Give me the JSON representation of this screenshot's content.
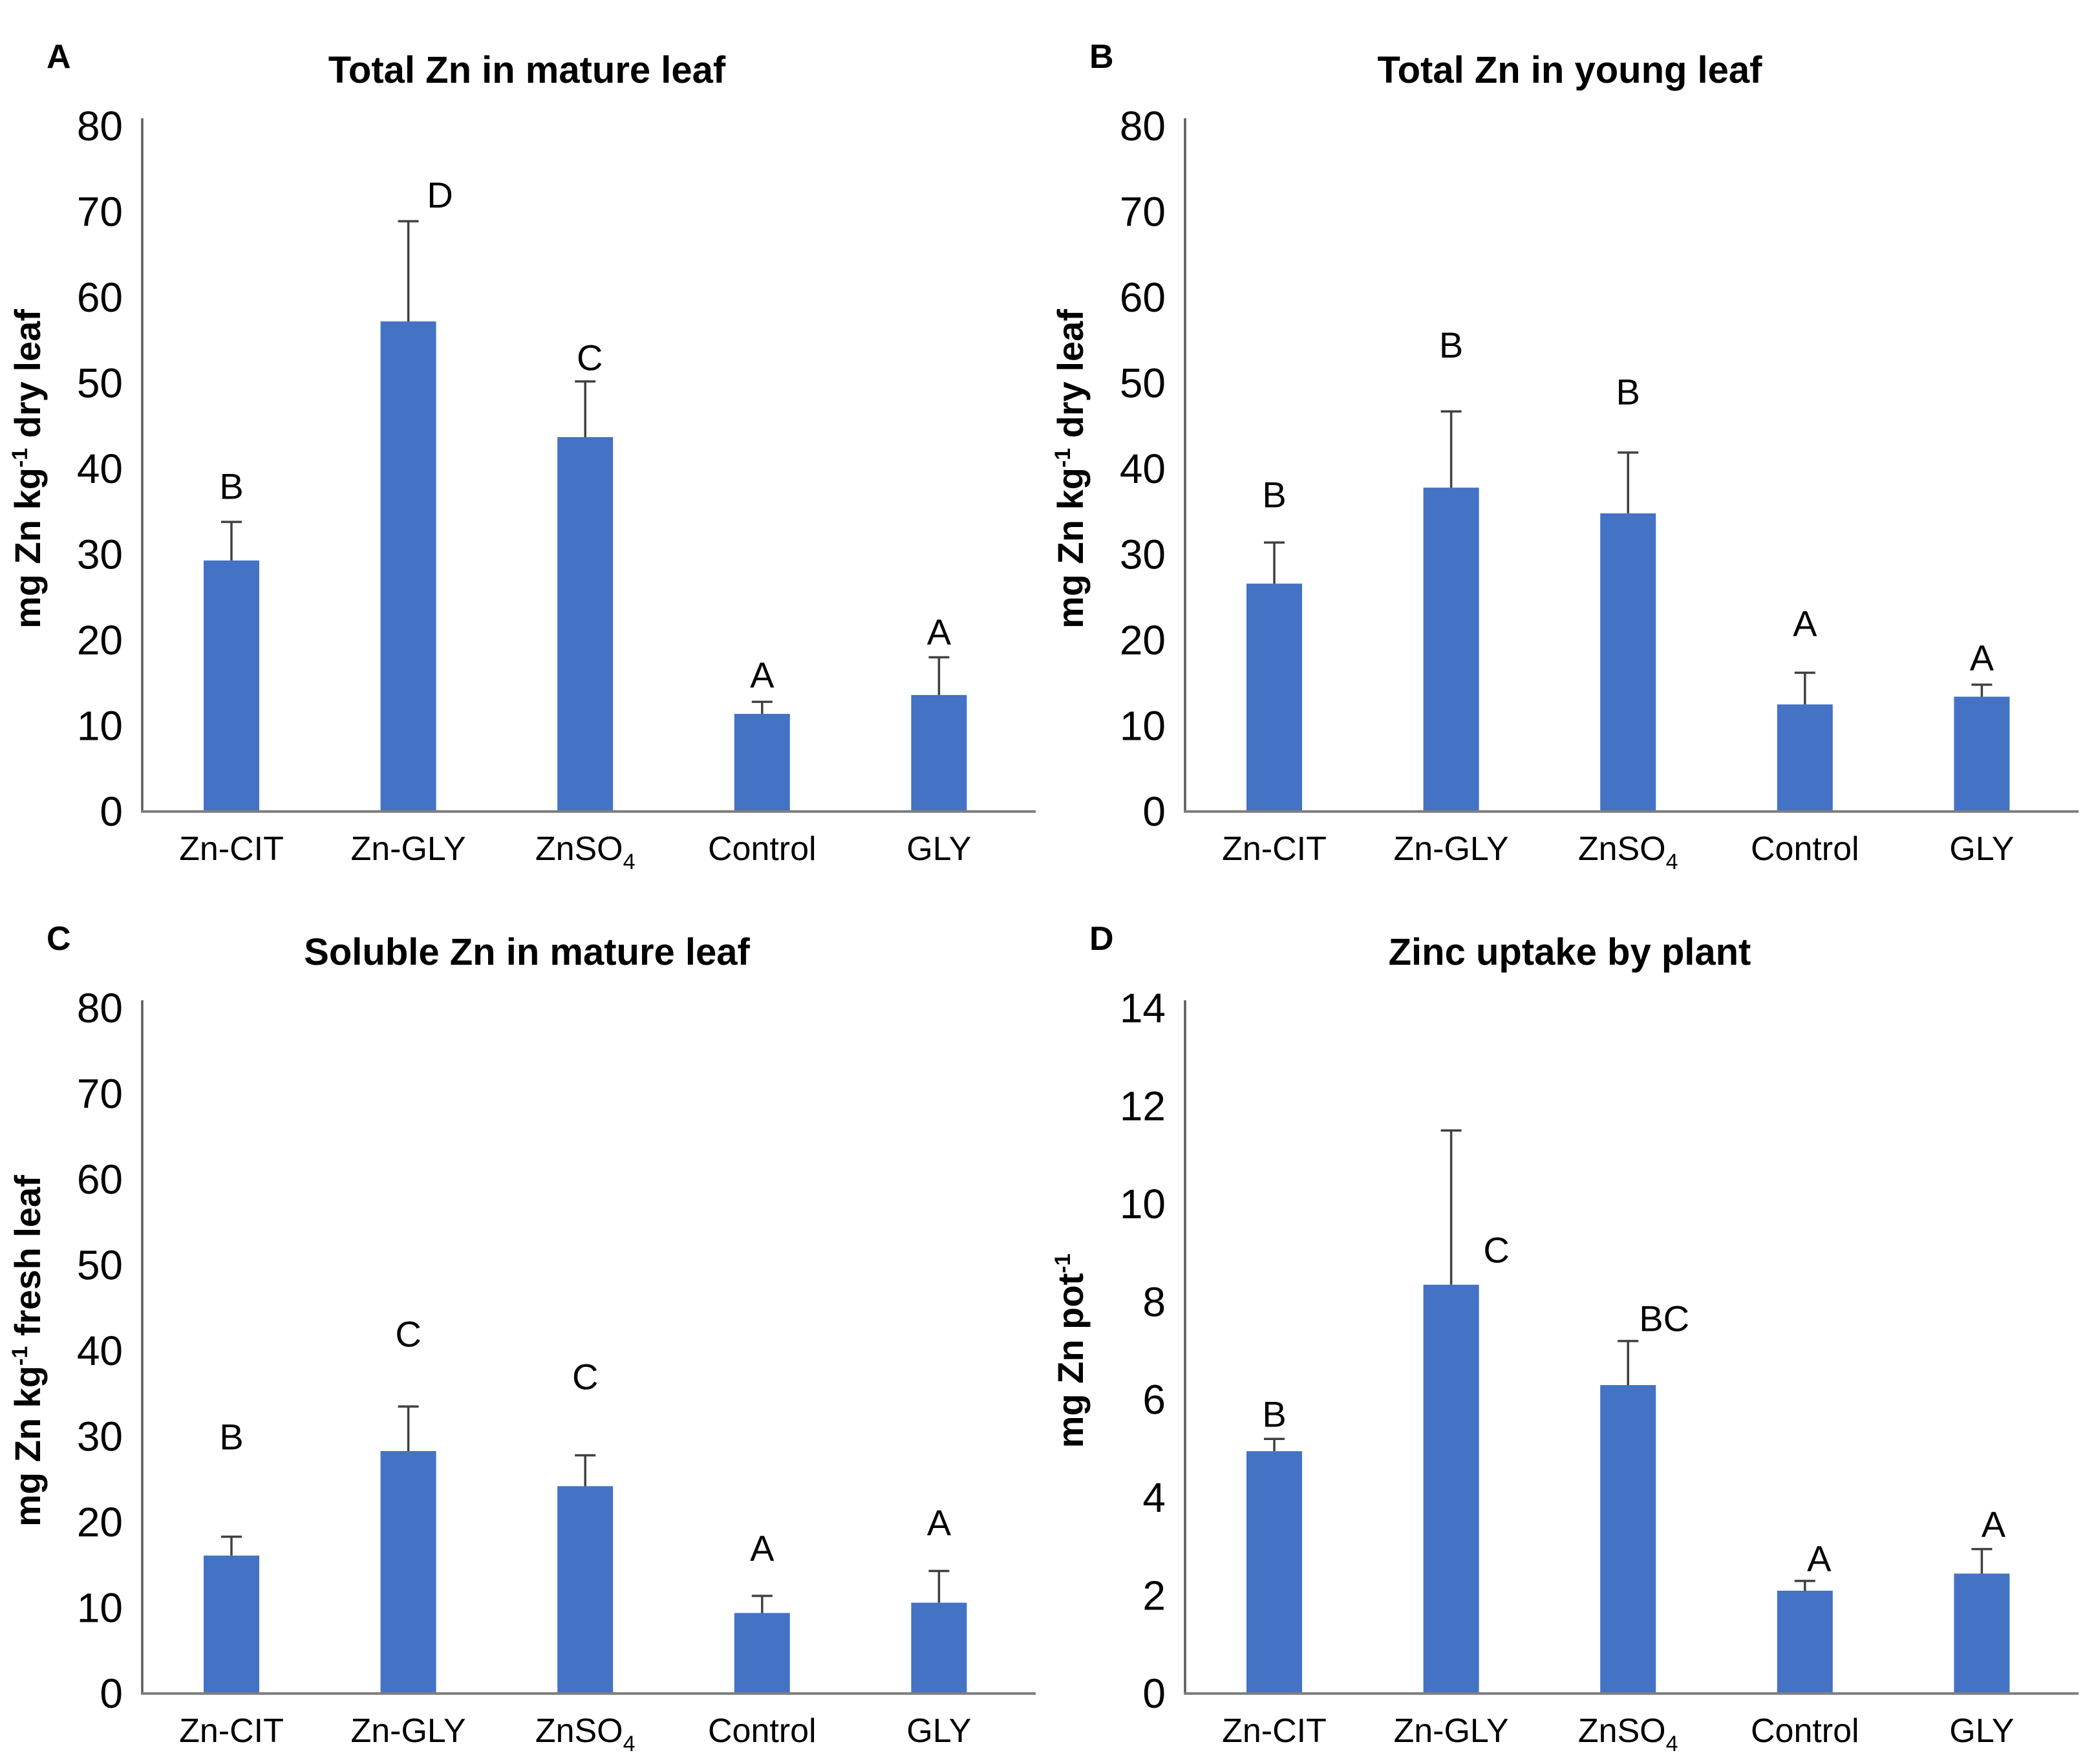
{
  "figure": {
    "bar_color": "#4472C4",
    "error_bar_color": "#404040",
    "y_axis_color": "#595959",
    "baseline_color": "#7F7F7F",
    "text_color": "#000000",
    "background": "#FFFFFF"
  },
  "chart_data": [
    {
      "type": "bar",
      "panel_label": "A",
      "title": "Total Zn in mature leaf",
      "ylabel": {
        "pre": "mg Zn  kg",
        "sup": "-1",
        "post": " dry leaf"
      },
      "ylim": [
        0,
        80
      ],
      "ytick_step": 10,
      "grid": false,
      "legend": "none",
      "categories": [
        "Zn-CIT",
        "Zn-GLY",
        {
          "text": "ZnSO",
          "sub": "4"
        },
        "Control",
        "GLY"
      ],
      "values": [
        29.3,
        57.2,
        43.7,
        11.4,
        13.6
      ],
      "errors_plus": [
        4.5,
        11.7,
        6.5,
        1.4,
        4.4
      ],
      "letters": [
        {
          "text": "B",
          "y": 36.5,
          "dx": 0
        },
        {
          "text": "D",
          "y": 70.5,
          "dx": 49
        },
        {
          "text": "C",
          "y": 51.5,
          "dx": 7
        },
        {
          "text": "A",
          "y": 14.5,
          "dx": 0
        },
        {
          "text": "A",
          "y": 19.5,
          "dx": 0
        }
      ]
    },
    {
      "type": "bar",
      "panel_label": "B",
      "title": "Total Zn in young leaf",
      "ylabel": {
        "pre": "mg Zn kg",
        "sup": "-1",
        "post": " dry leaf"
      },
      "ylim": [
        0,
        80
      ],
      "ytick_step": 10,
      "grid": false,
      "legend": "none",
      "categories": [
        "Zn-CIT",
        "Zn-GLY",
        {
          "text": "ZnSO",
          "sub": "4"
        },
        "Control",
        "GLY"
      ],
      "values": [
        26.6,
        37.8,
        34.8,
        12.5,
        13.4
      ],
      "errors_plus": [
        4.8,
        8.9,
        7.1,
        3.7,
        1.4
      ],
      "letters": [
        {
          "text": "B",
          "y": 35.5,
          "dx": 0
        },
        {
          "text": "B",
          "y": 53.0,
          "dx": 0
        },
        {
          "text": "B",
          "y": 47.5,
          "dx": 0
        },
        {
          "text": "A",
          "y": 20.5,
          "dx": 0
        },
        {
          "text": "A",
          "y": 16.5,
          "dx": 0
        }
      ]
    },
    {
      "type": "bar",
      "panel_label": "C",
      "title": "Soluble Zn in mature leaf",
      "ylabel": {
        "pre": "mg Zn kg",
        "sup": "-1",
        "post": " fresh leaf"
      },
      "ylim": [
        0,
        80
      ],
      "ytick_step": 10,
      "grid": false,
      "legend": "none",
      "categories": [
        "Zn-CIT",
        "Zn-GLY",
        {
          "text": "ZnSO",
          "sub": "4"
        },
        "Control",
        "GLY"
      ],
      "values": [
        16.1,
        28.3,
        24.2,
        9.4,
        10.6
      ],
      "errors_plus": [
        2.2,
        5.2,
        3.6,
        2.0,
        3.7
      ],
      "letters": [
        {
          "text": "B",
          "y": 28.5,
          "dx": 0
        },
        {
          "text": "C",
          "y": 40.5,
          "dx": 0
        },
        {
          "text": "C",
          "y": 35.5,
          "dx": 0
        },
        {
          "text": "A",
          "y": 15.5,
          "dx": 0
        },
        {
          "text": "A",
          "y": 18.5,
          "dx": 0
        }
      ]
    },
    {
      "type": "bar",
      "panel_label": "D",
      "title": "Zinc uptake by plant",
      "ylabel": {
        "pre": "mg Zn pot",
        "sup": "-1",
        "post": ""
      },
      "ylim": [
        0,
        14
      ],
      "ytick_step": 2,
      "grid": false,
      "legend": "none",
      "categories": [
        "Zn-CIT",
        "Zn-GLY",
        {
          "text": "ZnSO",
          "sub": "4"
        },
        "Control",
        "GLY"
      ],
      "values": [
        4.95,
        8.35,
        6.3,
        2.1,
        2.45
      ],
      "errors_plus": [
        0.25,
        3.15,
        0.9,
        0.2,
        0.5
      ],
      "letters": [
        {
          "text": "B",
          "y": 5.45,
          "dx": 0
        },
        {
          "text": "C",
          "y": 8.8,
          "dx": 70
        },
        {
          "text": "BC",
          "y": 7.4,
          "dx": 56
        },
        {
          "text": "A",
          "y": 2.5,
          "dx": 22
        },
        {
          "text": "A",
          "y": 3.2,
          "dx": 18
        }
      ]
    }
  ]
}
